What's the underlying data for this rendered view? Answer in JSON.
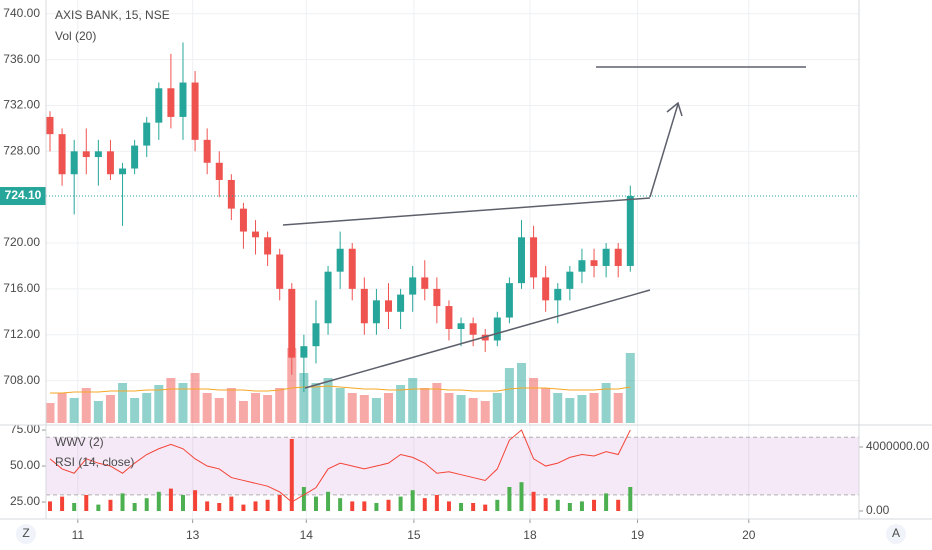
{
  "chart_data": {
    "type": "candlestick",
    "title": "AXIS BANK, 15, NSE",
    "up_color": "#26a69a",
    "down_color": "#ef5350",
    "grid": true,
    "xlim": [
      0,
      67
    ],
    "xticks": [
      {
        "value": 2.3,
        "label": "11"
      },
      {
        "value": 11.8,
        "label": "13"
      },
      {
        "value": 21.2,
        "label": "14"
      },
      {
        "value": 30.1,
        "label": "15"
      },
      {
        "value": 39.7,
        "label": "18"
      },
      {
        "value": 48.6,
        "label": "19"
      },
      {
        "value": 57.8,
        "label": "20"
      }
    ],
    "ylim": [
      704.3,
      741.2
    ],
    "yticks": [
      {
        "value": 740,
        "label": "740.00"
      },
      {
        "value": 736,
        "label": "736.00"
      },
      {
        "value": 732,
        "label": "732.00"
      },
      {
        "value": 728,
        "label": "728.00"
      },
      {
        "value": 720,
        "label": "720.00"
      },
      {
        "value": 716,
        "label": "716.00"
      },
      {
        "value": 712,
        "label": "712.00"
      },
      {
        "value": 708,
        "label": "708.00"
      }
    ],
    "last_price": {
      "value": 724.1,
      "label": "724.10"
    },
    "open": [
      731,
      729.5,
      726,
      728,
      727.5,
      728,
      726,
      726.5,
      728.5,
      730.5,
      733.5,
      731,
      734,
      729,
      727,
      725.5,
      723,
      721,
      720.5,
      719,
      716,
      710,
      711,
      713,
      717.5,
      719.5,
      716,
      713,
      715,
      714,
      715.5,
      717,
      716,
      714.5,
      712.5,
      713,
      712,
      711.5,
      713.5,
      716.5,
      720.5,
      717,
      715,
      716,
      717.5,
      718.5,
      718,
      719.5,
      718
    ],
    "high": [
      731.5,
      730,
      729,
      730,
      729,
      729,
      727,
      729,
      731,
      734,
      736.5,
      737.5,
      735,
      730,
      728,
      726,
      723.5,
      722,
      721,
      719.5,
      716.5,
      712,
      715,
      718,
      721,
      720,
      717,
      716,
      716.5,
      716,
      718,
      718.5,
      717,
      715,
      713.5,
      713.5,
      712.5,
      714,
      717,
      722,
      721.5,
      718,
      716.5,
      718,
      719.5,
      719.5,
      720,
      720,
      725
    ],
    "low": [
      728,
      725,
      722.5,
      726,
      725,
      725.5,
      721.5,
      726,
      727.5,
      729,
      730,
      729,
      728,
      726,
      724,
      722,
      719.5,
      719,
      718,
      715,
      708.5,
      707,
      709.5,
      712,
      716,
      715,
      712,
      712,
      712.5,
      712.5,
      714,
      715,
      713,
      711.5,
      711,
      711,
      710.5,
      711,
      713,
      716,
      716,
      714,
      713,
      715,
      716.5,
      717,
      717,
      717,
      717.5
    ],
    "close": [
      729.5,
      726,
      728,
      727.5,
      728,
      726,
      726.5,
      728.5,
      730.5,
      733.5,
      731,
      734,
      729,
      727,
      725.5,
      723,
      721,
      720.5,
      719,
      716,
      710,
      711,
      713,
      717.5,
      719.5,
      716,
      713,
      715,
      714,
      715.5,
      717,
      716,
      714.5,
      712.5,
      713,
      712,
      711.5,
      713.5,
      716.5,
      720.5,
      717,
      715,
      716,
      717.5,
      718.5,
      718,
      719.5,
      718,
      724.1
    ],
    "volume": {
      "label": "Vol (20)",
      "color": "#f5a623",
      "values": [
        20,
        30,
        25,
        35,
        22,
        28,
        40,
        25,
        30,
        38,
        45,
        40,
        50,
        30,
        25,
        35,
        22,
        30,
        28,
        35,
        75,
        50,
        40,
        45,
        35,
        30,
        28,
        25,
        30,
        38,
        45,
        35,
        40,
        30,
        28,
        25,
        22,
        30,
        55,
        60,
        45,
        35,
        30,
        25,
        28,
        30,
        40,
        30,
        70
      ],
      "ma": [
        30,
        30,
        31,
        31,
        31,
        32,
        32,
        32,
        33,
        33,
        34,
        34,
        34,
        34,
        33,
        33,
        33,
        32,
        32,
        33,
        35,
        36,
        36,
        37,
        36,
        35,
        34,
        34,
        33,
        33,
        34,
        34,
        34,
        33,
        33,
        32,
        32,
        32,
        34,
        35,
        35,
        35,
        34,
        33,
        33,
        33,
        34,
        34,
        36
      ]
    },
    "lower": {
      "wwv_label": "WWV (2)",
      "rsi_label": "RSI (14, close)",
      "rsi_color": "#f44336",
      "band_color": "#9c27b0",
      "rsi_band": [
        30,
        70
      ],
      "ylim": [
        16,
        78.5
      ],
      "yticks": [
        {
          "value": 75,
          "label": "75.00"
        },
        {
          "value": 50,
          "label": "50.00"
        },
        {
          "value": 25,
          "label": "25.00"
        }
      ],
      "y2lim": [
        -250000,
        5375000
      ],
      "y2ticks": [
        {
          "value": 4000000,
          "label": "4000000.00"
        },
        {
          "value": 0,
          "label": "0.00"
        }
      ],
      "rsi": [
        55,
        48,
        45,
        55,
        52,
        50,
        45,
        52,
        58,
        62,
        65,
        62,
        55,
        50,
        48,
        42,
        40,
        38,
        36,
        32,
        25,
        30,
        35,
        48,
        52,
        50,
        48,
        50,
        52,
        58,
        56,
        52,
        45,
        46,
        44,
        42,
        40,
        48,
        68,
        75,
        55,
        50,
        52,
        56,
        58,
        57,
        60,
        58,
        75
      ],
      "wwv": [
        600000,
        900000,
        500000,
        1000000,
        400000,
        700000,
        1100000,
        500000,
        800000,
        1200000,
        1400000,
        1000000,
        1300000,
        600000,
        500000,
        900000,
        400000,
        600000,
        700000,
        1000000,
        4500000,
        1500000,
        900000,
        1200000,
        800000,
        600000,
        600000,
        500000,
        700000,
        900000,
        1300000,
        800000,
        1000000,
        600000,
        500000,
        500000,
        400000,
        700000,
        1500000,
        1800000,
        1200000,
        800000,
        700000,
        500000,
        600000,
        700000,
        1100000,
        700000,
        1500000
      ]
    },
    "toolbar": {
      "left": "Z",
      "right": "A"
    }
  }
}
